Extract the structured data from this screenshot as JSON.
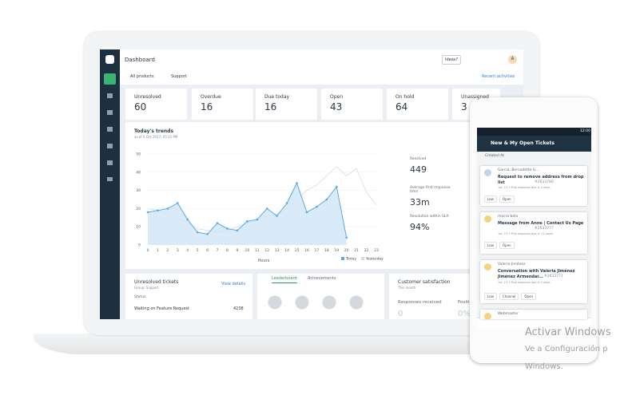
{
  "header": {
    "title": "Dashboard",
    "ideas": "Ideas?",
    "avatar": "A"
  },
  "filters": {
    "products": "All products",
    "group": "Support",
    "recent": "Recent activities"
  },
  "cards": [
    {
      "label": "Unresolved",
      "value": 60
    },
    {
      "label": "Overdue",
      "value": 16
    },
    {
      "label": "Due today",
      "value": 16
    },
    {
      "label": "Open",
      "value": 43
    },
    {
      "label": "On hold",
      "value": 64
    },
    {
      "label": "Unassigned",
      "value": 3
    }
  ],
  "trends": {
    "type": "line",
    "title": "Today's trends",
    "subtitle": "as of 5 Oct 2017, 05:21 PM",
    "xlabel": "Hours",
    "x": [
      0,
      1,
      2,
      3,
      4,
      5,
      6,
      7,
      8,
      9,
      10,
      11,
      12,
      13,
      14,
      15,
      16,
      17,
      18,
      19,
      20,
      21,
      22,
      23
    ],
    "xlim": [
      0,
      23
    ],
    "xticks": [
      0,
      1,
      2,
      3,
      4,
      5,
      6,
      7,
      8,
      9,
      10,
      11,
      12,
      13,
      14,
      15,
      16,
      17,
      18,
      19,
      20,
      21,
      22,
      23
    ],
    "ylim": [
      0,
      50
    ],
    "yticks": [
      0,
      10,
      20,
      30,
      40,
      50
    ],
    "series": [
      {
        "name": "Today",
        "color": "#5aa9e6",
        "values": [
          18,
          19,
          20,
          23,
          14,
          7,
          6,
          12,
          9,
          8,
          13,
          14,
          20,
          16,
          23,
          34,
          18,
          21,
          25,
          32,
          4,
          null,
          null,
          null
        ]
      },
      {
        "name": "Yesterday",
        "color": "#d5dbe1",
        "values": [
          20,
          19,
          17,
          15,
          12,
          9,
          8,
          7,
          8,
          10,
          12,
          14,
          16,
          17,
          20,
          25,
          30,
          33,
          38,
          43,
          38,
          42,
          29,
          22
        ]
      }
    ]
  },
  "metrics": [
    {
      "label": "Resolved",
      "value": "449"
    },
    {
      "label": "Average first response time",
      "value": "33m"
    },
    {
      "label": "Resolution within SLA",
      "value": "94%"
    }
  ],
  "unresolved": {
    "title": "Unresolved tickets",
    "group": "Group: Support",
    "link": "View details",
    "column": "Status",
    "rows": [
      {
        "status": "Waiting on Feature Request",
        "count": "4238"
      }
    ]
  },
  "leaderboard": {
    "tabs": [
      "Leaderboard",
      "Achievements"
    ]
  },
  "csat": {
    "title": "Customer satisfaction",
    "period": "This month",
    "responses_label": "Responses received",
    "responses": "0",
    "positive_label": "Positive",
    "positive": "0%"
  },
  "phone": {
    "time": "12:00",
    "title": "New & My Open Tickets",
    "sort": "Created At",
    "tickets": [
      {
        "requester": "Garcia, Bernadette G...",
        "subject": "Request to remove address from drop list",
        "id": "#2633780",
        "meta": "1st: 13 • First response due in 2 days",
        "tags": [
          "Low",
          "Open"
        ]
      },
      {
        "requester": "mocro bela",
        "subject": "Message from Anne | Contact Us Page",
        "id": "#2633777",
        "meta": "1st: 13 • First response due in 11 hours",
        "tags": [
          "Low",
          "Open"
        ]
      },
      {
        "requester": "Valeria Jiménez",
        "subject": "Conversation with Valeria Jiménez Jiménez Armendar...",
        "id": "#2633771",
        "meta": "1st: 13 • First response due in 2 days",
        "tags": [
          "Low",
          "Channel",
          "Open"
        ]
      },
      {
        "requester": "Webmaster",
        "subject": "",
        "id": "",
        "meta": "",
        "tags": []
      }
    ]
  },
  "watermark": {
    "title": "Activar Windows",
    "line1": "Ve a Configuración p",
    "line2": "Windows."
  }
}
